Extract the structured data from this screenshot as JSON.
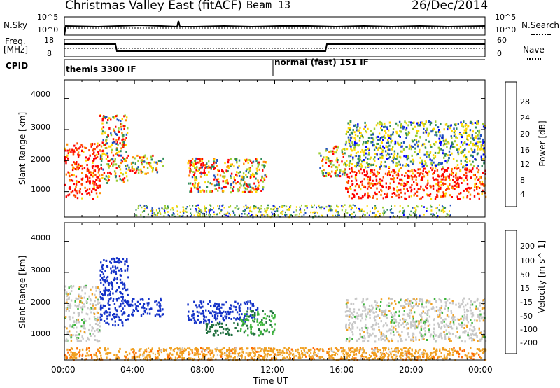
{
  "header": {
    "station": "Christmas Valley East (fitACF)",
    "beam": "Beam 13",
    "date": "26/Dec/2014"
  },
  "strips": {
    "nsky_label": "N.Sky",
    "nsearch_label": "N.Search",
    "nsky_ticks": [
      "10^5",
      "10^0"
    ],
    "nsearch_ticks": [
      "10^5",
      "10^0"
    ],
    "freq_label": "Freq.",
    "freq_unit": "[MHz]",
    "freq_ticks": [
      "18",
      "8"
    ],
    "nave_label": "Nave",
    "nave_ticks": [
      "60",
      "0"
    ],
    "cpid_label": "CPID",
    "cpid_modes": [
      "themis 3300 IF",
      "normal (fast) 151 IF"
    ]
  },
  "power_panel": {
    "ylabel": "Slant Range [km]",
    "yticks": [
      "4000",
      "3000",
      "2000",
      "1000"
    ],
    "colorbar_label": "Power [dB]",
    "colorbar_ticks": [
      "28",
      "24",
      "20",
      "16",
      "12",
      "8",
      "4"
    ],
    "colors": [
      "#ff0000",
      "#ff4500",
      "#ff8c00",
      "#ffd700",
      "#9acd32",
      "#2e8b57",
      "#1f4fbf",
      "#0000ff"
    ]
  },
  "velocity_panel": {
    "ylabel": "Slant Range [km]",
    "yticks": [
      "4000",
      "3000",
      "2000",
      "1000"
    ],
    "colorbar_label": "Velocity [m s^-1]",
    "colorbar_ticks": [
      "200",
      "100",
      "50",
      "15",
      "-15",
      "-50",
      "-100",
      "-200"
    ],
    "colors": [
      "#1432c8",
      "#1e6e3c",
      "#3cb43c",
      "#8ee060",
      "#c8c8c8",
      "#f0a020",
      "#ff6a00",
      "#ff1e1e",
      "#ff0000"
    ]
  },
  "xaxis": {
    "ticks": [
      "00:00",
      "04:00",
      "08:00",
      "12:00",
      "16:00",
      "20:00",
      "00:00"
    ],
    "label": "Time UT"
  },
  "chart_data": {
    "type": "heatmap",
    "title": "Christmas Valley East (fitACF) Beam 13",
    "xlabel": "Time UT",
    "ylabel": "Slant Range [km]",
    "xlim": [
      0,
      24
    ],
    "ylim": [
      180,
      4600
    ],
    "panels": [
      {
        "name": "Power [dB]",
        "clim": [
          0,
          30
        ],
        "regions": [
          {
            "t_start": 0.0,
            "t_end": 2.0,
            "range_min": 800,
            "range_max": 2600,
            "level": "high"
          },
          {
            "t_start": 2.0,
            "t_end": 3.6,
            "range_min": 1300,
            "range_max": 3500,
            "level": "mid"
          },
          {
            "t_start": 3.6,
            "t_end": 5.6,
            "range_min": 1600,
            "range_max": 2200,
            "level": "mid"
          },
          {
            "t_start": 7.0,
            "t_end": 8.0,
            "range_min": 1600,
            "range_max": 2100,
            "level": "high"
          },
          {
            "t_start": 7.0,
            "t_end": 11.5,
            "range_min": 1000,
            "range_max": 2100,
            "level": "mid"
          },
          {
            "t_start": 14.5,
            "t_end": 16.0,
            "range_min": 1500,
            "range_max": 2500,
            "level": "mid"
          },
          {
            "t_start": 16.0,
            "t_end": 24.0,
            "range_min": 800,
            "range_max": 1800,
            "level": "high"
          },
          {
            "t_start": 16.0,
            "t_end": 24.0,
            "range_min": 1800,
            "range_max": 3300,
            "level": "low"
          }
        ]
      },
      {
        "name": "Velocity [m s^-1]",
        "clim": [
          -200,
          200
        ],
        "regions": [
          {
            "t_start": 0.0,
            "t_end": 2.0,
            "range_min": 800,
            "range_max": 2600,
            "velocity": 0
          },
          {
            "t_start": 2.0,
            "t_end": 3.6,
            "range_min": 1300,
            "range_max": 3500,
            "velocity": 200
          },
          {
            "t_start": 3.6,
            "t_end": 5.6,
            "range_min": 1600,
            "range_max": 2200,
            "velocity": 200
          },
          {
            "t_start": 7.0,
            "t_end": 11.0,
            "range_min": 1400,
            "range_max": 2100,
            "velocity": 200
          },
          {
            "t_start": 8.0,
            "t_end": 10.0,
            "range_min": 1000,
            "range_max": 1400,
            "velocity": 80
          },
          {
            "t_start": 10.0,
            "t_end": 12.0,
            "range_min": 1000,
            "range_max": 1800,
            "velocity": 40
          },
          {
            "t_start": 16.0,
            "t_end": 24.0,
            "range_min": 800,
            "range_max": 2200,
            "velocity": 0
          },
          {
            "t_start": 0.0,
            "t_end": 24.0,
            "range_min": 200,
            "range_max": 600,
            "velocity": -40
          }
        ]
      }
    ]
  }
}
